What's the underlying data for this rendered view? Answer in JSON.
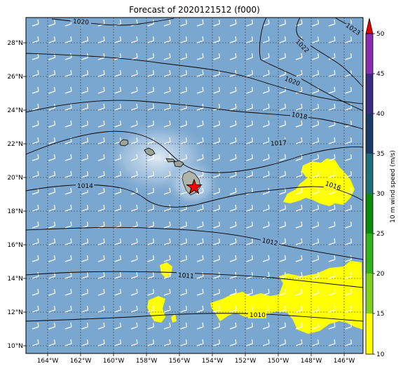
{
  "title": "Forecast of 2020121512 (f000)",
  "lon_labels": [
    "164°W",
    "162°W",
    "160°W",
    "158°W",
    "156°W",
    "154°W",
    "152°W",
    "150°W",
    "148°W",
    "146°W"
  ],
  "lat_labels": [
    "28°N",
    "26°N",
    "24°N",
    "22°N",
    "20°N",
    "18°N",
    "16°N",
    "14°N",
    "12°N",
    "10°N"
  ],
  "contour_labels": [
    "1020",
    "1023",
    "1022",
    "1020",
    "1018",
    "1017",
    "1014",
    "1016",
    "1012",
    "1011",
    "1010"
  ],
  "colorbar": {
    "label": "10 m wind speed (m/s)",
    "ticks": [
      "50",
      "45",
      "40",
      "35",
      "30",
      "25",
      "20",
      "15",
      "10"
    ],
    "colors": {
      "c10": "#ffff00",
      "c15": "#7fd11f",
      "c20": "#2fb21a",
      "c25": "#0a8c0a",
      "c30": "#1e6f7a",
      "c35": "#1a3a66",
      "c40": "#3b2a80",
      "c45": "#8a2cb0",
      "extend": "#e00000"
    }
  },
  "ocean_color": "#7aa7cf",
  "highlight_color": "#ffff00",
  "marker": "red-star"
}
